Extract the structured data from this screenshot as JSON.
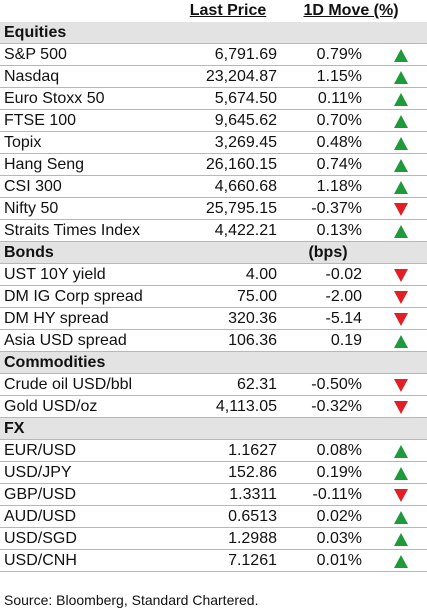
{
  "header": {
    "last_price": "Last Price",
    "move": "1D Move (%)"
  },
  "sections": [
    {
      "title": "Equities",
      "unit": "",
      "rows": [
        {
          "name": "S&P 500",
          "price": "6,791.69",
          "move": "0.79%",
          "dir": "up"
        },
        {
          "name": "Nasdaq",
          "price": "23,204.87",
          "move": "1.15%",
          "dir": "up"
        },
        {
          "name": "Euro Stoxx 50",
          "price": "5,674.50",
          "move": "0.11%",
          "dir": "up"
        },
        {
          "name": "FTSE 100",
          "price": "9,645.62",
          "move": "0.70%",
          "dir": "up"
        },
        {
          "name": "Topix",
          "price": "3,269.45",
          "move": "0.48%",
          "dir": "up"
        },
        {
          "name": "Hang Seng",
          "price": "26,160.15",
          "move": "0.74%",
          "dir": "up"
        },
        {
          "name": "CSI 300",
          "price": "4,660.68",
          "move": "1.18%",
          "dir": "up"
        },
        {
          "name": "Nifty 50",
          "price": "25,795.15",
          "move": "-0.37%",
          "dir": "down"
        },
        {
          "name": "Straits Times Index",
          "price": "4,422.21",
          "move": "0.13%",
          "dir": "up"
        }
      ]
    },
    {
      "title": "Bonds",
      "unit": "(bps)",
      "rows": [
        {
          "name": "UST 10Y yield",
          "price": "4.00",
          "move": "-0.02",
          "dir": "down"
        },
        {
          "name": "DM IG Corp spread",
          "price": "75.00",
          "move": "-2.00",
          "dir": "down"
        },
        {
          "name": "DM HY spread",
          "price": "320.36",
          "move": "-5.14",
          "dir": "down"
        },
        {
          "name": "Asia USD spread",
          "price": "106.36",
          "move": "0.19",
          "dir": "up"
        }
      ]
    },
    {
      "title": "Commodities",
      "unit": "",
      "rows": [
        {
          "name": "Crude oil USD/bbl",
          "price": "62.31",
          "move": "-0.50%",
          "dir": "down"
        },
        {
          "name": "Gold USD/oz",
          "price": "4,113.05",
          "move": "-0.32%",
          "dir": "down"
        }
      ]
    },
    {
      "title": "FX",
      "unit": "",
      "rows": [
        {
          "name": "EUR/USD",
          "price": "1.1627",
          "move": "0.08%",
          "dir": "up"
        },
        {
          "name": "USD/JPY",
          "price": "152.86",
          "move": "0.19%",
          "dir": "up"
        },
        {
          "name": "GBP/USD",
          "price": "1.3311",
          "move": "-0.11%",
          "dir": "down"
        },
        {
          "name": "AUD/USD",
          "price": "0.6513",
          "move": "0.02%",
          "dir": "up"
        },
        {
          "name": "USD/SGD",
          "price": "1.2988",
          "move": "0.03%",
          "dir": "up"
        },
        {
          "name": "USD/CNH",
          "price": "7.1261",
          "move": "0.01%",
          "dir": "up"
        }
      ]
    }
  ],
  "source": "Source: Bloomberg, Standard Chartered.",
  "colors": {
    "up": "#1f9a3a",
    "down": "#e21e26",
    "section_bg": "#e3e3e3"
  }
}
